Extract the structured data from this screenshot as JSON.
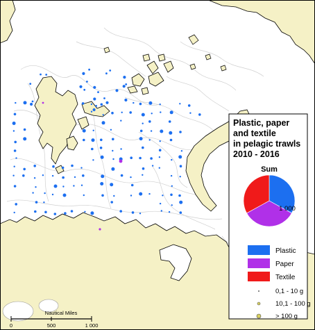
{
  "legend": {
    "title_lines": [
      "Plastic, paper",
      "and textile",
      "in pelagic trawls",
      "2010 - 2016"
    ],
    "sum_label": "Sum",
    "pie_value_label": "1 000",
    "pie_fractions": {
      "Plastic": 0.33,
      "Paper": 0.34,
      "Textile": 0.33
    },
    "categories": [
      {
        "label": "Plastic",
        "color": "#1c6ff0"
      },
      {
        "label": "Paper",
        "color": "#b030e8"
      },
      {
        "label": "Textile",
        "color": "#f01a1a"
      }
    ],
    "size_classes": [
      {
        "label": "0,1 - 10 g",
        "symbol": "tiny-dot-icon"
      },
      {
        "label": "10,1 - 100 g",
        "symbol": "small-circle-icon"
      },
      {
        "label": "> 100 g",
        "symbol": "medium-circle-icon"
      }
    ]
  },
  "scale_bar": {
    "title": "Nautical Miles",
    "ticks": [
      "0",
      "500",
      "1 000"
    ]
  },
  "colors": {
    "land": "#f5f1c6",
    "sea": "#ffffff",
    "coast_outline": "#000000",
    "depth_contours": "#c8c8c8",
    "plastic": "#1c6ff0",
    "paper": "#b030e8",
    "textile": "#f01a1a"
  }
}
